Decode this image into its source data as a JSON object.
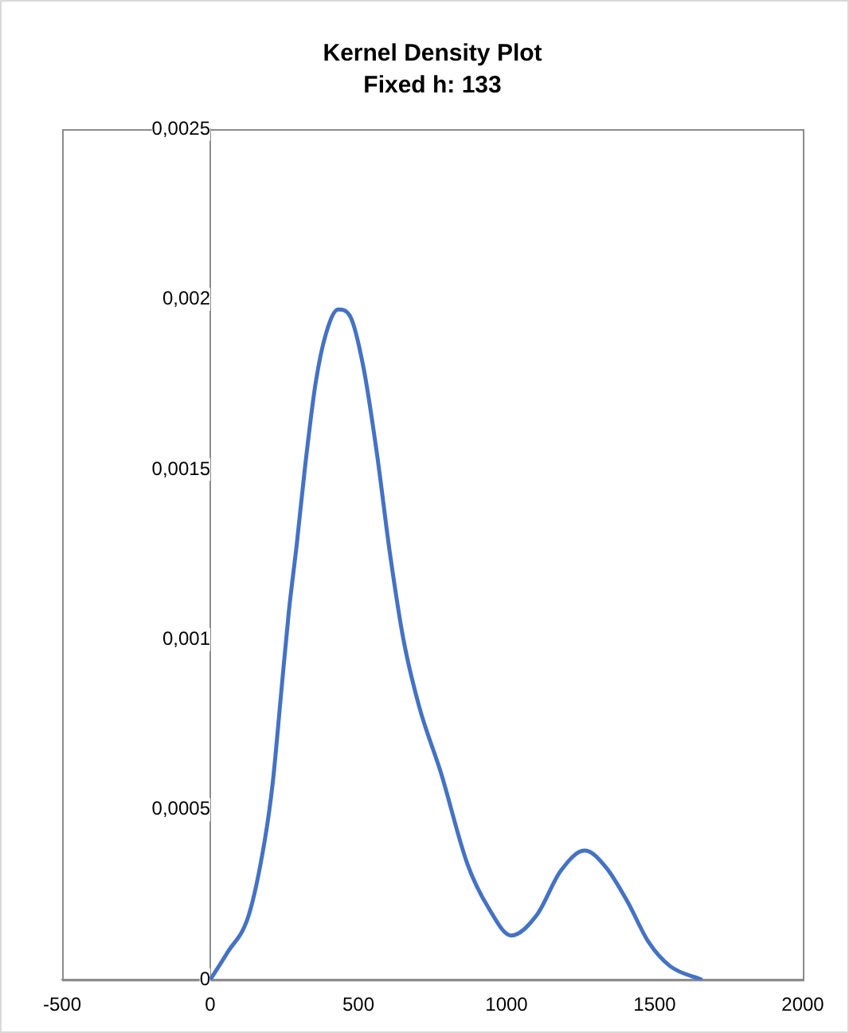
{
  "chart_data": {
    "type": "line",
    "title": "Kernel Density Plot",
    "subtitle": "Fixed h: 133",
    "series": [
      {
        "color": "#4472c4",
        "x": [
          0,
          58,
          130,
          184,
          211,
          238,
          265,
          292,
          319,
          355,
          391,
          432,
          472,
          517,
          562,
          607,
          652,
          706,
          778,
          868,
          940,
          1016,
          1102,
          1183,
          1264,
          1336,
          1408,
          1480,
          1552,
          1660
        ],
        "values": [
          0,
          8e-05,
          0.00019,
          0.00041,
          0.00058,
          0.00083,
          0.00108,
          0.00128,
          0.0015,
          0.00175,
          0.0019,
          0.00197,
          0.00195,
          0.0018,
          0.00155,
          0.00125,
          0.001,
          0.0008,
          0.00061,
          0.00034,
          0.00021,
          0.00013,
          0.00019,
          0.00032,
          0.00038,
          0.00033,
          0.00023,
          0.00011,
          4e-05,
          0
        ]
      }
    ],
    "xlim": [
      -500,
      2000
    ],
    "xticks": [
      -500,
      0,
      500,
      1000,
      1500,
      2000
    ],
    "ylim": [
      0,
      0.0025
    ],
    "yticks": [
      0,
      {
        "value": 0.0005,
        "label": "0,0005"
      },
      {
        "value": 0.001,
        "label": "0,001"
      },
      {
        "value": 0.0015,
        "label": "0,0015"
      },
      {
        "value": 0.002,
        "label": "0,002"
      },
      {
        "value": 0.0025,
        "label": "0,0025"
      }
    ],
    "grid": false,
    "legend": false,
    "marker": "none",
    "line_style": "solid"
  }
}
